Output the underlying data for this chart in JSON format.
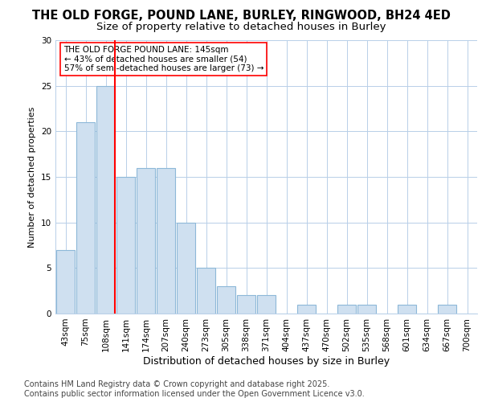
{
  "title1": "THE OLD FORGE, POUND LANE, BURLEY, RINGWOOD, BH24 4ED",
  "title2": "Size of property relative to detached houses in Burley",
  "xlabel": "Distribution of detached houses by size in Burley",
  "ylabel": "Number of detached properties",
  "categories": [
    "43sqm",
    "75sqm",
    "108sqm",
    "141sqm",
    "174sqm",
    "207sqm",
    "240sqm",
    "273sqm",
    "305sqm",
    "338sqm",
    "371sqm",
    "404sqm",
    "437sqm",
    "470sqm",
    "502sqm",
    "535sqm",
    "568sqm",
    "601sqm",
    "634sqm",
    "667sqm",
    "700sqm"
  ],
  "values": [
    7,
    21,
    25,
    15,
    16,
    16,
    10,
    5,
    3,
    2,
    2,
    0,
    1,
    0,
    1,
    1,
    0,
    1,
    0,
    1,
    0
  ],
  "bar_color": "#cfe0f0",
  "bar_edge_color": "#8db8d8",
  "red_line_after_index": 2,
  "annotation_text": "THE OLD FORGE POUND LANE: 145sqm\n← 43% of detached houses are smaller (54)\n57% of semi-detached houses are larger (73) →",
  "ylim": [
    0,
    30
  ],
  "yticks": [
    0,
    5,
    10,
    15,
    20,
    25,
    30
  ],
  "background_color": "#ffffff",
  "plot_bg_color": "#ffffff",
  "footer_text": "Contains HM Land Registry data © Crown copyright and database right 2025.\nContains public sector information licensed under the Open Government Licence v3.0.",
  "title1_fontsize": 10.5,
  "title2_fontsize": 9.5,
  "annotation_fontsize": 7.5,
  "ylabel_fontsize": 8,
  "xlabel_fontsize": 9,
  "footer_fontsize": 7,
  "tick_fontsize": 7.5
}
